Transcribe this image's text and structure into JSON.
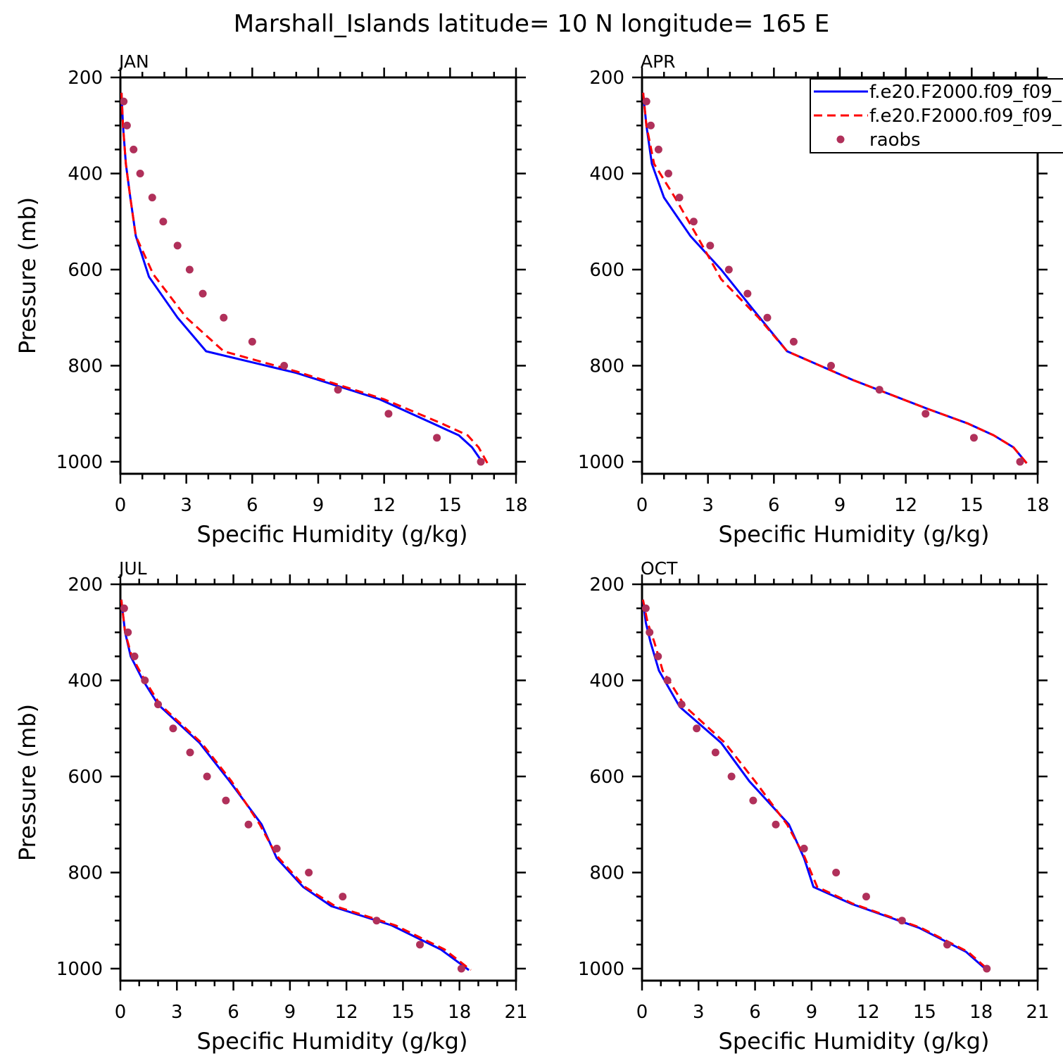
{
  "title": "Marshall_Islands  latitude= 10 N longitude= 165 E",
  "legend": {
    "entries": [
      {
        "label": "f.e20.F2000.f09_f09_",
        "color": "#0000ff",
        "style": "solid"
      },
      {
        "label": "f.e20.F2000.f09_f09_",
        "color": "#ff0000",
        "style": "dashed"
      },
      {
        "label": "raobs",
        "color": "#b0305a",
        "style": "marker"
      }
    ]
  },
  "chart_data": [
    {
      "type": "line",
      "panel": "JAN",
      "title": "JAN",
      "xlabel": "Specific Humidity (g/kg)",
      "ylabel": "Pressure (mb)",
      "xlim": [
        0,
        18
      ],
      "ylim": [
        1025,
        200
      ],
      "xticks": [
        0,
        3,
        6,
        9,
        12,
        15,
        18
      ],
      "yticks": [
        200,
        400,
        600,
        800,
        1000
      ],
      "series": [
        {
          "name": "f.e20.F2000.f09_f09_",
          "style": "solid",
          "color": "#0000ff",
          "x": [
            0.05,
            0.12,
            0.25,
            0.45,
            0.7,
            1.3,
            2.6,
            3.9,
            8.0,
            11.8,
            14.2,
            15.4,
            16.0,
            16.5
          ],
          "y": [
            232,
            300,
            380,
            450,
            530,
            615,
            700,
            770,
            815,
            870,
            920,
            945,
            970,
            1003
          ]
        },
        {
          "name": "f.e20.F2000.f09_f09_",
          "style": "dashed",
          "color": "#ff0000",
          "x": [
            0.05,
            0.12,
            0.25,
            0.45,
            0.7,
            1.5,
            3.0,
            4.7,
            8.0,
            12.0,
            14.6,
            15.8,
            16.3,
            16.7
          ],
          "y": [
            232,
            300,
            380,
            450,
            530,
            610,
            700,
            770,
            812,
            870,
            920,
            945,
            970,
            1003
          ]
        },
        {
          "name": "raobs",
          "style": "marker",
          "color": "#b0305a",
          "x": [
            0.15,
            0.3,
            0.6,
            0.9,
            1.45,
            1.95,
            2.6,
            3.15,
            3.75,
            4.7,
            6.0,
            7.45,
            9.9,
            12.2,
            14.4,
            16.4
          ],
          "y": [
            250,
            300,
            350,
            400,
            450,
            500,
            550,
            600,
            650,
            700,
            750,
            800,
            850,
            900,
            950,
            1000
          ]
        }
      ]
    },
    {
      "type": "line",
      "panel": "APR",
      "title": "APR",
      "xlabel": "Specific Humidity (g/kg)",
      "ylabel": "",
      "xlim": [
        0,
        18
      ],
      "ylim": [
        1025,
        200
      ],
      "xticks": [
        0,
        3,
        6,
        9,
        12,
        15,
        18
      ],
      "yticks": [
        200,
        400,
        600,
        800,
        1000
      ],
      "series": [
        {
          "name": "f.e20.F2000.f09_f09_",
          "style": "solid",
          "color": "#0000ff",
          "x": [
            0.05,
            0.2,
            0.45,
            1.0,
            2.2,
            3.6,
            5.0,
            6.6,
            9.6,
            13.0,
            14.8,
            16.0,
            16.9,
            17.5
          ],
          "y": [
            232,
            300,
            380,
            450,
            530,
            600,
            680,
            770,
            830,
            890,
            920,
            945,
            970,
            1003
          ]
        },
        {
          "name": "f.e20.F2000.f09_f09_",
          "style": "dashed",
          "color": "#ff0000",
          "x": [
            0.05,
            0.2,
            0.55,
            1.5,
            2.5,
            3.6,
            5.3,
            6.6,
            9.6,
            13.0,
            14.8,
            16.0,
            16.9,
            17.5
          ],
          "y": [
            232,
            300,
            380,
            450,
            530,
            620,
            700,
            770,
            830,
            890,
            920,
            945,
            970,
            1003
          ]
        },
        {
          "name": "raobs",
          "style": "marker",
          "color": "#b0305a",
          "x": [
            0.2,
            0.4,
            0.75,
            1.2,
            1.7,
            2.35,
            3.1,
            3.95,
            4.8,
            5.7,
            6.9,
            8.6,
            10.8,
            12.9,
            15.1,
            17.2
          ],
          "y": [
            250,
            300,
            350,
            400,
            450,
            500,
            550,
            600,
            650,
            700,
            750,
            800,
            850,
            900,
            950,
            1000
          ]
        }
      ]
    },
    {
      "type": "line",
      "panel": "JUL",
      "title": "JUL",
      "xlabel": "Specific Humidity (g/kg)",
      "ylabel": "Pressure (mb)",
      "xlim": [
        0,
        21
      ],
      "ylim": [
        1025,
        200
      ],
      "xticks": [
        0,
        3,
        6,
        9,
        12,
        15,
        18,
        21
      ],
      "yticks": [
        200,
        400,
        600,
        800,
        1000
      ],
      "series": [
        {
          "name": "f.e20.F2000.f09_f09_",
          "style": "solid",
          "color": "#0000ff",
          "x": [
            0.05,
            0.25,
            0.55,
            1.2,
            2.0,
            4.2,
            5.8,
            7.5,
            8.3,
            9.7,
            11.2,
            14.4,
            17.0,
            18.5
          ],
          "y": [
            232,
            300,
            350,
            400,
            450,
            530,
            610,
            700,
            770,
            830,
            870,
            910,
            960,
            1003
          ]
        },
        {
          "name": "f.e20.F2000.f09_f09_",
          "style": "dashed",
          "color": "#ff0000",
          "x": [
            0.05,
            0.25,
            0.6,
            1.3,
            2.1,
            4.3,
            5.9,
            7.4,
            8.3,
            9.8,
            11.4,
            14.6,
            17.2,
            18.6
          ],
          "y": [
            232,
            300,
            350,
            400,
            450,
            530,
            610,
            700,
            765,
            830,
            870,
            910,
            960,
            1003
          ]
        },
        {
          "name": "raobs",
          "style": "marker",
          "color": "#b0305a",
          "x": [
            0.2,
            0.4,
            0.75,
            1.3,
            2.0,
            2.8,
            3.7,
            4.6,
            5.6,
            6.8,
            8.3,
            10.0,
            11.8,
            13.6,
            15.9,
            18.1
          ],
          "y": [
            250,
            300,
            350,
            400,
            450,
            500,
            550,
            600,
            650,
            700,
            750,
            800,
            850,
            900,
            950,
            1000
          ]
        }
      ]
    },
    {
      "type": "line",
      "panel": "OCT",
      "title": "OCT",
      "xlabel": "Specific Humidity (g/kg)",
      "ylabel": "",
      "xlim": [
        0,
        21
      ],
      "ylim": [
        1025,
        200
      ],
      "xticks": [
        0,
        3,
        6,
        9,
        12,
        15,
        18,
        21
      ],
      "yticks": [
        200,
        400,
        600,
        800,
        1000
      ],
      "series": [
        {
          "name": "f.e20.F2000.f09_f09_",
          "style": "solid",
          "color": "#0000ff",
          "x": [
            0.05,
            0.2,
            0.45,
            0.9,
            2.0,
            4.2,
            5.7,
            7.8,
            8.6,
            9.1,
            11.1,
            14.7,
            17.2,
            18.3
          ],
          "y": [
            232,
            280,
            320,
            380,
            455,
            530,
            610,
            700,
            770,
            830,
            865,
            915,
            965,
            1003
          ]
        },
        {
          "name": "f.e20.F2000.f09_f09_",
          "style": "dashed",
          "color": "#ff0000",
          "x": [
            0.05,
            0.3,
            0.65,
            1.1,
            2.3,
            4.4,
            6.0,
            7.7,
            8.6,
            9.3,
            11.2,
            14.8,
            17.3,
            18.4
          ],
          "y": [
            232,
            280,
            320,
            380,
            455,
            530,
            610,
            700,
            765,
            830,
            865,
            915,
            965,
            1003
          ]
        },
        {
          "name": "raobs",
          "style": "marker",
          "color": "#b0305a",
          "x": [
            0.2,
            0.4,
            0.85,
            1.35,
            2.1,
            2.9,
            3.9,
            4.75,
            5.9,
            7.1,
            8.6,
            10.3,
            11.9,
            13.8,
            16.2,
            18.3
          ],
          "y": [
            250,
            300,
            350,
            400,
            450,
            500,
            550,
            600,
            650,
            700,
            750,
            800,
            850,
            900,
            950,
            1000
          ]
        }
      ]
    }
  ]
}
